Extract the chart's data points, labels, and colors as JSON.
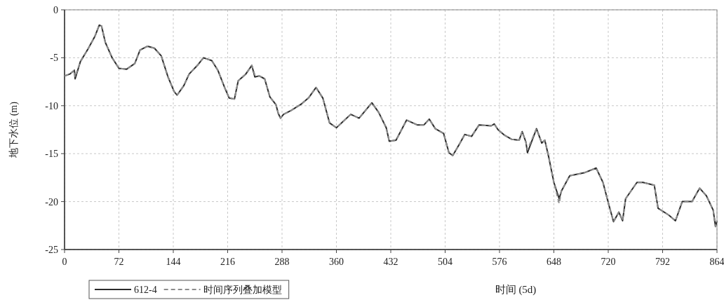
{
  "chart_data": {
    "type": "line",
    "xlabel": "时间 (5d)",
    "ylabel": "地下水位 (m)",
    "x": [
      0,
      7,
      13,
      14,
      21,
      31,
      40,
      46,
      49,
      54,
      63,
      72,
      82,
      93,
      100,
      110,
      119,
      128,
      137,
      145,
      149,
      158,
      165,
      177,
      184,
      195,
      203,
      212,
      218,
      225,
      230,
      240,
      248,
      252,
      258,
      265,
      272,
      280,
      283,
      286,
      290,
      300,
      314,
      323,
      333,
      342,
      351,
      360,
      379,
      390,
      407,
      416,
      426,
      430,
      439,
      453,
      467,
      476,
      483,
      491,
      502,
      509,
      514,
      523,
      530,
      539,
      549,
      565,
      569,
      574,
      583,
      592,
      602,
      606,
      611,
      613,
      625,
      632,
      636,
      641,
      648,
      655,
      658,
      669,
      688,
      704,
      713,
      721,
      727,
      734,
      739,
      743,
      758,
      766,
      781,
      786,
      800,
      809,
      818,
      831,
      841,
      850,
      859,
      862,
      864
    ],
    "series": [
      {
        "name": "612-4",
        "color": "#2b2b2b",
        "line_style": "solid",
        "values": [
          -6.9,
          -6.7,
          -6.3,
          -7.2,
          -5.4,
          -4.1,
          -2.8,
          -1.6,
          -1.7,
          -3.4,
          -5.0,
          -6.1,
          -6.2,
          -5.6,
          -4.2,
          -3.8,
          -4.0,
          -4.8,
          -7.0,
          -8.5,
          -8.9,
          -7.9,
          -6.7,
          -5.7,
          -5.0,
          -5.3,
          -6.3,
          -8.1,
          -9.2,
          -9.3,
          -7.4,
          -6.7,
          -5.8,
          -7.0,
          -6.9,
          -7.2,
          -9.1,
          -9.9,
          -10.8,
          -11.3,
          -10.9,
          -10.5,
          -9.8,
          -9.2,
          -8.1,
          -9.2,
          -11.8,
          -12.3,
          -10.9,
          -11.3,
          -9.7,
          -10.7,
          -12.3,
          -13.7,
          -13.6,
          -11.5,
          -12.0,
          -12.0,
          -11.4,
          -12.4,
          -12.9,
          -14.9,
          -15.2,
          -14.0,
          -13.0,
          -13.2,
          -12.0,
          -12.1,
          -11.9,
          -12.5,
          -13.1,
          -13.5,
          -13.6,
          -12.7,
          -13.8,
          -14.9,
          -12.4,
          -13.9,
          -13.6,
          -15.3,
          -18.0,
          -19.7,
          -18.9,
          -17.3,
          -17.0,
          -16.5,
          -18.0,
          -20.4,
          -22.1,
          -21.1,
          -22.0,
          -19.7,
          -18.0,
          -18.0,
          -18.3,
          -20.7,
          -21.4,
          -22.0,
          -20.0,
          -20.0,
          -18.6,
          -19.4,
          -20.9,
          -22.6,
          -22.0
        ]
      },
      {
        "name": "时间序列叠加模型",
        "color": "#8c8c8c",
        "line_style": "dashed",
        "values": [
          -6.9,
          -6.7,
          -6.3,
          -7.0,
          -5.4,
          -4.1,
          -2.8,
          -1.6,
          -1.7,
          -3.4,
          -5.0,
          -6.1,
          -6.2,
          -5.6,
          -4.2,
          -3.8,
          -4.0,
          -4.8,
          -7.0,
          -8.5,
          -8.9,
          -7.9,
          -6.7,
          -5.7,
          -5.0,
          -5.3,
          -6.3,
          -8.1,
          -9.2,
          -9.3,
          -7.4,
          -6.7,
          -5.8,
          -6.8,
          -6.9,
          -7.2,
          -9.1,
          -9.9,
          -10.8,
          -11.3,
          -10.9,
          -10.5,
          -9.8,
          -9.2,
          -8.1,
          -9.2,
          -11.8,
          -12.3,
          -10.9,
          -11.3,
          -9.7,
          -10.7,
          -12.3,
          -13.7,
          -13.6,
          -11.5,
          -12.0,
          -12.0,
          -11.4,
          -12.4,
          -12.9,
          -14.9,
          -15.2,
          -14.0,
          -13.0,
          -13.2,
          -12.0,
          -12.1,
          -11.9,
          -12.5,
          -13.1,
          -13.5,
          -13.6,
          -12.7,
          -13.8,
          -14.6,
          -12.4,
          -13.9,
          -13.6,
          -15.3,
          -18.0,
          -20.2,
          -18.9,
          -17.3,
          -17.0,
          -16.5,
          -18.0,
          -20.4,
          -22.1,
          -21.1,
          -22.0,
          -19.7,
          -18.0,
          -18.0,
          -18.3,
          -20.7,
          -21.4,
          -22.0,
          -20.0,
          -20.0,
          -18.6,
          -19.4,
          -20.9,
          -22.6,
          -22.0
        ]
      }
    ],
    "xlim": [
      0,
      864
    ],
    "ylim": [
      -25,
      0
    ],
    "xticks": [
      0,
      72,
      144,
      216,
      288,
      360,
      432,
      504,
      576,
      648,
      720,
      792,
      864
    ],
    "yticks": [
      0,
      -5,
      -10,
      -15,
      -20,
      -25
    ],
    "grid": true,
    "legend": "bottom left"
  }
}
